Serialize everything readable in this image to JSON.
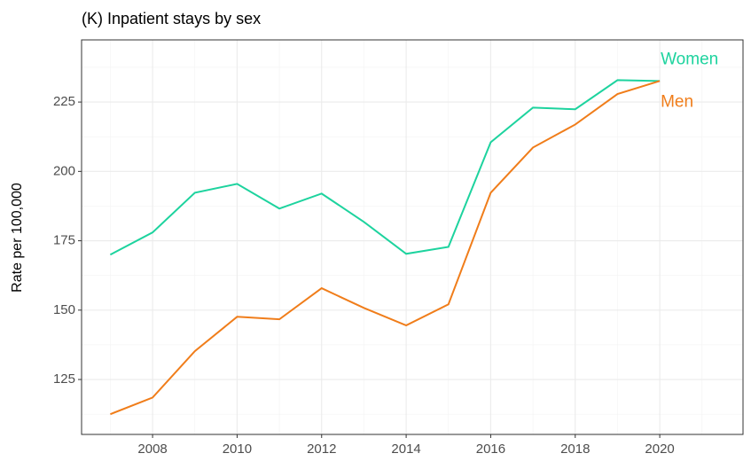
{
  "chart_data": {
    "type": "line",
    "title": "(K) Inpatient stays by sex",
    "y_label": "Rate per 100,000",
    "x": [
      2007,
      2008,
      2009,
      2010,
      2011,
      2012,
      2013,
      2014,
      2015,
      2016,
      2017,
      2018,
      2019,
      2020
    ],
    "series": [
      {
        "name": "Women",
        "color": "#1dd39e",
        "values": [
          170,
          178,
          192.3,
          195.5,
          186.6,
          192,
          181.8,
          170.3,
          172.8,
          210.5,
          223,
          222.4,
          232.9,
          232.6
        ]
      },
      {
        "name": "Men",
        "color": "#f07d1a",
        "values": [
          112.5,
          118.5,
          135.2,
          147.6,
          146.7,
          157.9,
          150.8,
          144.5,
          152.1,
          192.3,
          208.6,
          216.9,
          227.9,
          232.6
        ]
      }
    ],
    "xlim": [
      2006.32,
      2021.97
    ],
    "xticks": [
      2008,
      2010,
      2012,
      2014,
      2016,
      2018,
      2020
    ],
    "ylim": [
      105.2,
      247.4
    ],
    "yticks": [
      125,
      150,
      175,
      200,
      225
    ],
    "grid": true
  }
}
